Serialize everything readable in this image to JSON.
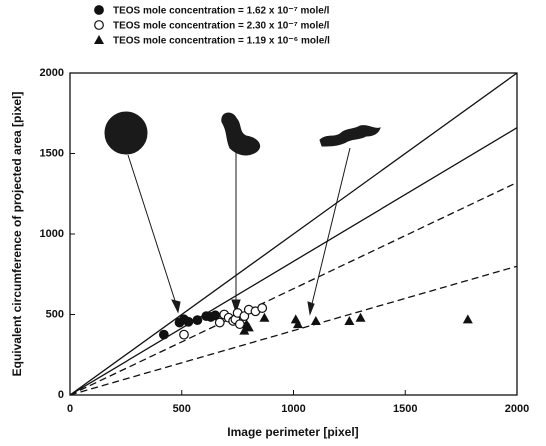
{
  "chart_data": {
    "type": "scatter",
    "x_label": "Image perimeter [pixel]",
    "y_label": "Equivalent circumference of projected area [pixel]",
    "xlim": [
      0,
      2000
    ],
    "ylim": [
      0,
      2000
    ],
    "xticks": [
      0,
      500,
      1000,
      1500,
      2000
    ],
    "yticks": [
      0,
      500,
      1000,
      1500,
      2000
    ],
    "grid": false,
    "series": [
      {
        "name": "TEOS mole concentration = 1.62 x 10⁻⁷ mole/l",
        "color": "#111111",
        "marker": "circle-filled",
        "x": [
          420,
          490,
          510,
          530,
          570,
          610,
          630,
          650
        ],
        "values": [
          375,
          450,
          470,
          455,
          465,
          490,
          485,
          495
        ]
      },
      {
        "name": "TEOS mole concentration = 2.30 x 10⁻⁷ mole/l",
        "color": "#111111",
        "marker": "circle-open",
        "x": [
          510,
          670,
          690,
          710,
          730,
          740,
          750,
          760,
          780,
          800,
          830,
          860
        ],
        "values": [
          375,
          450,
          500,
          480,
          460,
          470,
          510,
          440,
          490,
          530,
          520,
          540
        ]
      },
      {
        "name": "TEOS mole concentration = 1.19 x 10⁻⁶ mole/l",
        "color": "#111111",
        "marker": "triangle-filled",
        "x": [
          780,
          790,
          800,
          870,
          1010,
          1020,
          1100,
          1250,
          1300,
          1780
        ],
        "values": [
          400,
          440,
          420,
          480,
          470,
          440,
          460,
          460,
          480,
          470
        ]
      }
    ],
    "lines": [
      {
        "x": [
          0,
          2000
        ],
        "values": [
          0,
          2000
        ],
        "dashed": false
      },
      {
        "x": [
          0,
          2000
        ],
        "values": [
          0,
          1660
        ],
        "dashed": false
      },
      {
        "x": [
          0,
          2000
        ],
        "values": [
          0,
          1320
        ],
        "dashed": true
      },
      {
        "x": [
          0,
          2000
        ],
        "values": [
          0,
          800
        ],
        "dashed": true
      }
    ]
  }
}
